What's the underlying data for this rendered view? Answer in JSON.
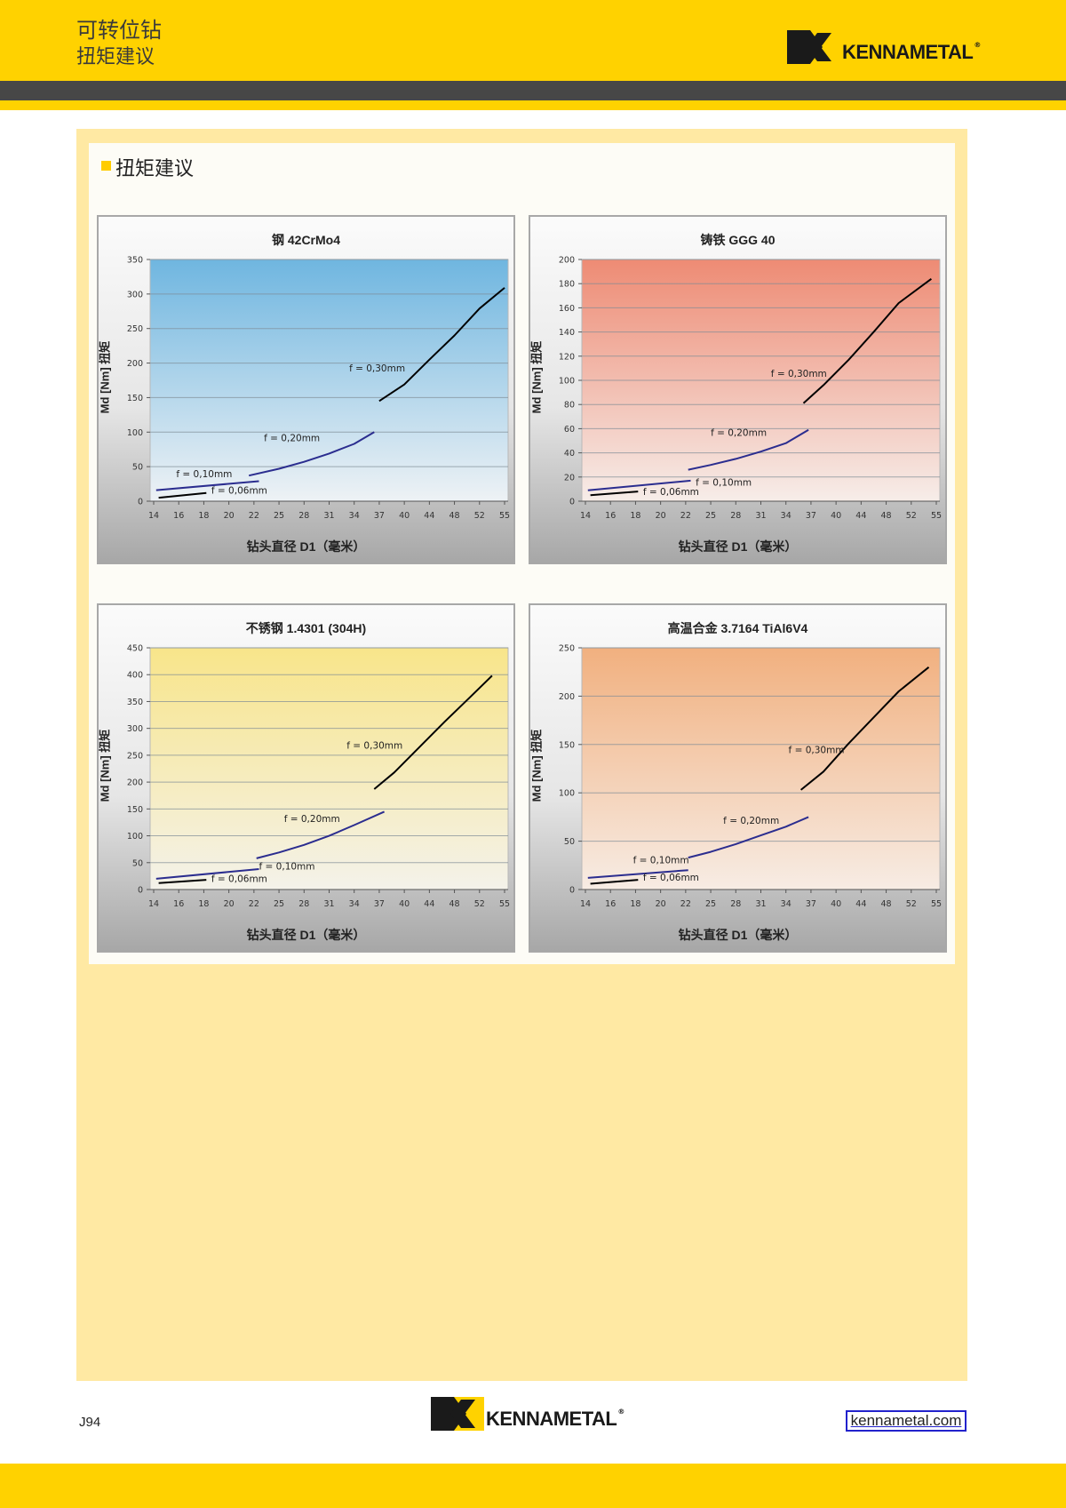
{
  "header": {
    "line1": "可转位钻",
    "line2": "扭矩建议"
  },
  "brand": {
    "name": "KENNAMETAL",
    "reg": "®"
  },
  "section": {
    "title": "扭矩建议"
  },
  "footer": {
    "page_number": "J94",
    "website": "kennametal.com"
  },
  "colors": {
    "brand_yellow": "#ffd200",
    "dark_bar": "#474747",
    "panel": "#ffe9a3",
    "series_black": "#000000",
    "series_blue": "#2b2d8f"
  },
  "chart_data": [
    {
      "type": "line",
      "title": "钢 42CrMo4",
      "xlabel": "钻头直径 D1（毫米）",
      "ylabel": "Md [Nm] 扭矩",
      "categories": [
        "14",
        "16",
        "18",
        "20",
        "22",
        "25",
        "28",
        "31",
        "34",
        "37",
        "40",
        "44",
        "48",
        "52",
        "55"
      ],
      "ylim": [
        0,
        350
      ],
      "yticks": [
        0,
        50,
        100,
        150,
        200,
        250,
        300,
        350
      ],
      "grid": true,
      "bg_top": "#6fb6e0",
      "bg_bottom": "#eef2f5",
      "series": [
        {
          "name": "f = 0,06mm",
          "color": "#000000",
          "points": [
            [
              0.2,
              5
            ],
            [
              2.1,
              12
            ]
          ]
        },
        {
          "name": "f = 0,10mm",
          "color": "#2b2d8f",
          "points": [
            [
              0.1,
              16
            ],
            [
              4.2,
              29
            ]
          ]
        },
        {
          "name": "f = 0,20mm",
          "color": "#2b2d8f",
          "points": [
            [
              3.8,
              37
            ],
            [
              5,
              47
            ],
            [
              6,
              57
            ],
            [
              7,
              69
            ],
            [
              8,
              83
            ],
            [
              8.8,
              100
            ]
          ]
        },
        {
          "name": "f = 0,30mm",
          "color": "#000000",
          "points": [
            [
              9,
              145
            ],
            [
              10,
              169
            ],
            [
              11,
              205
            ],
            [
              12,
              240
            ],
            [
              13,
              279
            ],
            [
              14,
              309
            ]
          ]
        }
      ],
      "annotations": [
        {
          "text": "f = 0,30mm",
          "x": 7.8,
          "y": 188
        },
        {
          "text": "f = 0,20mm",
          "x": 4.4,
          "y": 87
        },
        {
          "text": "f = 0,10mm",
          "x": 0.9,
          "y": 35
        },
        {
          "text": "f = 0,06mm",
          "x": 2.3,
          "y": 11
        }
      ]
    },
    {
      "type": "line",
      "title": "铸铁 GGG 40",
      "xlabel": "钻头直径 D1（毫米）",
      "ylabel": "Md [Nm] 扭矩",
      "categories": [
        "14",
        "16",
        "18",
        "20",
        "22",
        "25",
        "28",
        "31",
        "34",
        "37",
        "40",
        "44",
        "48",
        "52",
        "55"
      ],
      "ylim": [
        0,
        200
      ],
      "yticks": [
        0,
        20,
        40,
        60,
        80,
        100,
        120,
        140,
        160,
        180,
        200
      ],
      "grid": true,
      "bg_top": "#ee8b74",
      "bg_bottom": "#f6ede9",
      "series": [
        {
          "name": "f = 0,06mm",
          "color": "#000000",
          "points": [
            [
              0.2,
              5
            ],
            [
              2.1,
              8
            ]
          ]
        },
        {
          "name": "f = 0,10mm",
          "color": "#2b2d8f",
          "points": [
            [
              0.1,
              9
            ],
            [
              4.2,
              17
            ]
          ]
        },
        {
          "name": "f = 0,20mm",
          "color": "#2b2d8f",
          "points": [
            [
              4.1,
              26
            ],
            [
              5,
              30
            ],
            [
              6,
              35
            ],
            [
              7,
              41
            ],
            [
              8,
              48
            ],
            [
              8.9,
              59
            ]
          ]
        },
        {
          "name": "f = 0,30mm",
          "color": "#000000",
          "points": [
            [
              8.7,
              81
            ],
            [
              9.5,
              96
            ],
            [
              10.5,
              117
            ],
            [
              11.5,
              140
            ],
            [
              12.5,
              164
            ],
            [
              13.8,
              184
            ]
          ]
        }
      ],
      "annotations": [
        {
          "text": "f = 0,30mm",
          "x": 7.4,
          "y": 103
        },
        {
          "text": "f = 0,20mm",
          "x": 5,
          "y": 54
        },
        {
          "text": "f = 0,10mm",
          "x": 4.4,
          "y": 13
        },
        {
          "text": "f = 0,06mm",
          "x": 2.3,
          "y": 5
        }
      ]
    },
    {
      "type": "line",
      "title": "不锈钢 1.4301 (304H)",
      "xlabel": "钻头直径 D1（毫米）",
      "ylabel": "Md [Nm] 扭矩",
      "categories": [
        "14",
        "16",
        "18",
        "20",
        "22",
        "25",
        "28",
        "31",
        "34",
        "37",
        "40",
        "44",
        "48",
        "52",
        "55"
      ],
      "ylim": [
        0,
        450
      ],
      "yticks": [
        0,
        50,
        100,
        150,
        200,
        250,
        300,
        350,
        400,
        450
      ],
      "grid": true,
      "bg_top": "#f8e58a",
      "bg_bottom": "#f4f2ea",
      "series": [
        {
          "name": "f = 0,06mm",
          "color": "#000000",
          "points": [
            [
              0.2,
              12
            ],
            [
              2.1,
              18
            ]
          ]
        },
        {
          "name": "f = 0,10mm",
          "color": "#2b2d8f",
          "points": [
            [
              0.1,
              20
            ],
            [
              4.2,
              38
            ]
          ]
        },
        {
          "name": "f = 0,20mm",
          "color": "#2b2d8f",
          "points": [
            [
              4.1,
              58
            ],
            [
              5,
              69
            ],
            [
              6,
              83
            ],
            [
              7,
              100
            ],
            [
              8,
              120
            ],
            [
              9.2,
              145
            ]
          ]
        },
        {
          "name": "f = 0,30mm",
          "color": "#000000",
          "points": [
            [
              8.8,
              187
            ],
            [
              9.6,
              218
            ],
            [
              10.6,
              265
            ],
            [
              11.6,
              312
            ],
            [
              12.6,
              357
            ],
            [
              13.5,
              398
            ]
          ]
        }
      ],
      "annotations": [
        {
          "text": "f = 0,30mm",
          "x": 7.7,
          "y": 262
        },
        {
          "text": "f = 0,20mm",
          "x": 5.2,
          "y": 126
        },
        {
          "text": "f = 0,10mm",
          "x": 4.2,
          "y": 37
        },
        {
          "text": "f = 0,06mm",
          "x": 2.3,
          "y": 14
        }
      ]
    },
    {
      "type": "line",
      "title": "高温合金 3.7164 TiAl6V4",
      "xlabel": "钻头直径 D1（毫米）",
      "ylabel": "Md [Nm] 扭矩",
      "categories": [
        "14",
        "16",
        "18",
        "20",
        "22",
        "25",
        "28",
        "31",
        "34",
        "37",
        "40",
        "44",
        "48",
        "52",
        "55"
      ],
      "ylim": [
        0,
        250
      ],
      "yticks": [
        0,
        50,
        100,
        150,
        200,
        250
      ],
      "grid": true,
      "bg_top": "#f1b07f",
      "bg_bottom": "#f7ece4",
      "series": [
        {
          "name": "f = 0,06mm",
          "color": "#000000",
          "points": [
            [
              0.2,
              6
            ],
            [
              2.1,
              10
            ]
          ]
        },
        {
          "name": "f = 0,10mm",
          "color": "#2b2d8f",
          "points": [
            [
              0.1,
              12
            ],
            [
              4.1,
              20
            ]
          ]
        },
        {
          "name": "f = 0,20mm",
          "color": "#2b2d8f",
          "points": [
            [
              4.1,
              33
            ],
            [
              5,
              39
            ],
            [
              6,
              47
            ],
            [
              7,
              56
            ],
            [
              8,
              65
            ],
            [
              8.9,
              75
            ]
          ]
        },
        {
          "name": "f = 0,30mm",
          "color": "#000000",
          "points": [
            [
              8.6,
              103
            ],
            [
              9.5,
              122
            ],
            [
              10.5,
              151
            ],
            [
              11.5,
              178
            ],
            [
              12.5,
              205
            ],
            [
              13.7,
              230
            ]
          ]
        }
      ],
      "annotations": [
        {
          "text": "f = 0,30mm",
          "x": 8.1,
          "y": 141
        },
        {
          "text": "f = 0,20mm",
          "x": 5.5,
          "y": 68
        },
        {
          "text": "f = 0,10mm",
          "x": 1.9,
          "y": 27
        },
        {
          "text": "f = 0,06mm",
          "x": 2.3,
          "y": 9
        }
      ]
    }
  ]
}
